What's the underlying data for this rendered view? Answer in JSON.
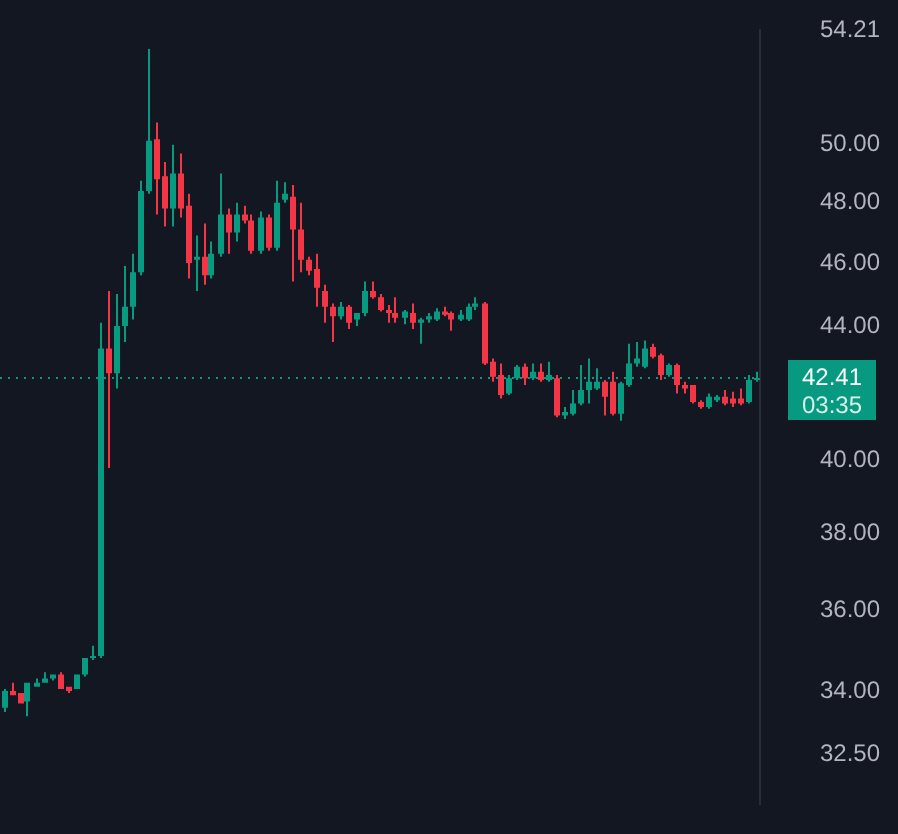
{
  "chart_data": {
    "type": "candlestick",
    "categories": [
      null,
      null,
      null,
      null,
      null,
      null,
      null,
      null,
      null,
      null,
      null,
      null,
      null,
      null,
      null,
      null,
      null,
      null,
      null,
      null,
      null,
      null,
      null,
      null,
      null,
      null,
      null,
      null,
      null,
      null,
      null,
      null,
      null,
      null,
      null,
      null,
      null,
      null,
      null,
      null,
      null,
      null,
      null,
      null,
      null,
      null,
      null,
      null,
      null,
      null,
      null,
      null,
      null,
      null,
      null,
      null,
      null,
      null,
      null,
      null,
      null,
      null,
      null,
      null,
      null,
      null,
      null,
      null,
      null,
      null,
      null,
      null,
      null,
      null,
      null,
      null,
      null,
      null,
      null,
      null,
      null,
      null,
      null,
      null,
      null,
      null,
      null,
      null,
      null,
      null,
      null,
      null,
      null,
      null,
      null
    ],
    "ohlc": [
      [
        33.6,
        34.05,
        33.5,
        34.0
      ],
      [
        34.0,
        34.2,
        33.9,
        33.9
      ],
      [
        33.95,
        33.95,
        33.7,
        33.7
      ],
      [
        33.75,
        34.2,
        33.4,
        34.2
      ],
      [
        34.1,
        34.3,
        34.1,
        34.2
      ],
      [
        34.2,
        34.45,
        34.2,
        34.3
      ],
      [
        34.3,
        34.4,
        34.25,
        34.4
      ],
      [
        34.4,
        34.45,
        34.05,
        34.05
      ],
      [
        34.1,
        34.1,
        33.95,
        34.0
      ],
      [
        34.05,
        34.4,
        34.05,
        34.4
      ],
      [
        34.4,
        34.8,
        34.35,
        34.8
      ],
      [
        34.8,
        35.1,
        34.75,
        34.85
      ],
      [
        34.85,
        44.1,
        34.8,
        43.3
      ],
      [
        43.3,
        45.1,
        39.8,
        42.55
      ],
      [
        42.55,
        45.0,
        42.1,
        44.0
      ],
      [
        44.0,
        45.9,
        43.5,
        44.6
      ],
      [
        44.6,
        46.3,
        44.2,
        45.7
      ],
      [
        45.7,
        48.75,
        45.6,
        48.4
      ],
      [
        48.4,
        53.5,
        48.3,
        50.15
      ],
      [
        50.2,
        50.8,
        47.6,
        48.8
      ],
      [
        48.9,
        49.4,
        47.2,
        47.8
      ],
      [
        47.8,
        50.0,
        47.2,
        49.0
      ],
      [
        49.0,
        49.7,
        47.5,
        47.8
      ],
      [
        47.9,
        48.3,
        45.5,
        46.0
      ],
      [
        46.1,
        46.9,
        45.1,
        46.2
      ],
      [
        46.2,
        47.3,
        45.3,
        45.6
      ],
      [
        45.6,
        46.7,
        45.5,
        46.3
      ],
      [
        46.3,
        49.0,
        46.2,
        47.6
      ],
      [
        47.6,
        47.8,
        46.3,
        47.0
      ],
      [
        47.0,
        48.0,
        46.7,
        47.6
      ],
      [
        47.6,
        47.9,
        47.3,
        47.4
      ],
      [
        47.4,
        47.6,
        46.3,
        46.4
      ],
      [
        46.4,
        47.7,
        46.3,
        47.5
      ],
      [
        47.5,
        47.6,
        46.4,
        46.5
      ],
      [
        46.5,
        48.75,
        46.4,
        48.0
      ],
      [
        48.1,
        48.7,
        48.0,
        48.3
      ],
      [
        48.2,
        48.6,
        45.4,
        47.1
      ],
      [
        47.1,
        48.0,
        45.7,
        46.1
      ],
      [
        46.1,
        46.2,
        45.6,
        45.75
      ],
      [
        45.8,
        46.3,
        44.6,
        45.2
      ],
      [
        45.1,
        45.3,
        44.1,
        44.6
      ],
      [
        44.6,
        44.7,
        43.5,
        44.3
      ],
      [
        44.3,
        44.75,
        44.2,
        44.6
      ],
      [
        44.6,
        44.65,
        43.9,
        44.1
      ],
      [
        44.2,
        44.4,
        44.0,
        44.4
      ],
      [
        44.4,
        45.4,
        44.3,
        45.1
      ],
      [
        45.1,
        45.4,
        44.85,
        44.9
      ],
      [
        44.9,
        45.0,
        44.45,
        44.5
      ],
      [
        44.5,
        44.65,
        44.1,
        44.4
      ],
      [
        44.4,
        44.9,
        44.1,
        44.25
      ],
      [
        44.25,
        44.5,
        44.05,
        44.45
      ],
      [
        44.4,
        44.7,
        43.9,
        44.1
      ],
      [
        44.1,
        44.25,
        43.45,
        44.2
      ],
      [
        44.2,
        44.4,
        44.1,
        44.3
      ],
      [
        44.2,
        44.55,
        44.15,
        44.45
      ],
      [
        44.45,
        44.6,
        44.3,
        44.35
      ],
      [
        44.4,
        44.45,
        43.85,
        44.2
      ],
      [
        44.2,
        44.5,
        44.15,
        44.35
      ],
      [
        44.2,
        44.7,
        44.15,
        44.6
      ],
      [
        44.6,
        44.9,
        44.5,
        44.7
      ],
      [
        44.7,
        44.75,
        42.8,
        42.85
      ],
      [
        42.9,
        43.0,
        42.3,
        42.45
      ],
      [
        42.5,
        42.85,
        41.8,
        41.9
      ],
      [
        41.95,
        42.5,
        41.9,
        42.4
      ],
      [
        42.4,
        42.8,
        42.35,
        42.75
      ],
      [
        42.75,
        42.85,
        42.2,
        42.4
      ],
      [
        42.4,
        42.85,
        42.35,
        42.6
      ],
      [
        42.6,
        42.85,
        42.3,
        42.35
      ],
      [
        42.35,
        42.9,
        42.3,
        42.5
      ],
      [
        42.4,
        42.5,
        41.25,
        41.3
      ],
      [
        41.3,
        41.55,
        41.2,
        41.4
      ],
      [
        41.35,
        42.05,
        41.3,
        41.65
      ],
      [
        41.65,
        42.8,
        41.6,
        42.05
      ],
      [
        42.05,
        43.0,
        41.65,
        42.3
      ],
      [
        42.1,
        42.7,
        42.05,
        42.3
      ],
      [
        42.3,
        42.35,
        41.3,
        41.85
      ],
      [
        42.3,
        42.6,
        41.3,
        41.35
      ],
      [
        41.35,
        42.3,
        41.15,
        42.25
      ],
      [
        42.2,
        43.45,
        42.15,
        42.85
      ],
      [
        42.85,
        43.5,
        42.75,
        43.0
      ],
      [
        42.75,
        43.55,
        42.7,
        43.3
      ],
      [
        43.35,
        43.45,
        43.0,
        43.05
      ],
      [
        43.1,
        43.15,
        42.35,
        42.5
      ],
      [
        42.5,
        42.85,
        42.45,
        42.8
      ],
      [
        42.8,
        42.85,
        41.95,
        42.2
      ],
      [
        42.2,
        42.3,
        41.95,
        42.1
      ],
      [
        42.2,
        42.2,
        41.65,
        41.7
      ],
      [
        41.7,
        41.75,
        41.5,
        41.55
      ],
      [
        41.55,
        41.95,
        41.5,
        41.85
      ],
      [
        41.75,
        41.9,
        41.7,
        41.85
      ],
      [
        41.85,
        42.05,
        41.6,
        41.65
      ],
      [
        41.8,
        42.0,
        41.55,
        41.65
      ],
      [
        41.8,
        42.1,
        41.6,
        41.65
      ],
      [
        41.7,
        42.5,
        41.65,
        42.35
      ],
      [
        42.35,
        42.6,
        42.3,
        42.41
      ]
    ],
    "colors": [
      "#089981",
      "#f23645",
      "#f23645",
      "#089981",
      "#089981",
      "#089981",
      "#089981",
      "#f23645",
      "#f23645",
      "#089981",
      "#089981",
      "#089981",
      "#089981",
      "#f23645",
      "#089981",
      "#089981",
      "#089981",
      "#089981",
      "#089981",
      "#f23645",
      "#f23645",
      "#089981",
      "#f23645",
      "#f23645",
      "#089981",
      "#f23645",
      "#089981",
      "#089981",
      "#f23645",
      "#089981",
      "#f23645",
      "#f23645",
      "#089981",
      "#f23645",
      "#089981",
      "#089981",
      "#f23645",
      "#f23645",
      "#f23645",
      "#f23645",
      "#f23645",
      "#f23645",
      "#089981",
      "#f23645",
      "#089981",
      "#089981",
      "#f23645",
      "#f23645",
      "#f23645",
      "#f23645",
      "#089981",
      "#f23645",
      "#089981",
      "#089981",
      "#089981",
      "#f23645",
      "#f23645",
      "#089981",
      "#089981",
      "#089981",
      "#f23645",
      "#f23645",
      "#f23645",
      "#089981",
      "#089981",
      "#f23645",
      "#089981",
      "#f23645",
      "#089981",
      "#f23645",
      "#089981",
      "#089981",
      "#089981",
      "#089981",
      "#089981",
      "#f23645",
      "#f23645",
      "#089981",
      "#089981",
      "#089981",
      "#089981",
      "#f23645",
      "#f23645",
      "#089981",
      "#f23645",
      "#f23645",
      "#f23645",
      "#f23645",
      "#089981",
      "#089981",
      "#f23645",
      "#f23645",
      "#f23645",
      "#089981",
      "#089981"
    ],
    "log": true,
    "ylim": [
      31.4,
      54.21
    ],
    "yticks": [
      {
        "value": 32.5,
        "label": "32.50"
      },
      {
        "value": 34,
        "label": "34.00"
      },
      {
        "value": 36,
        "label": "36.00"
      },
      {
        "value": 38,
        "label": "38.00"
      },
      {
        "value": 40,
        "label": "40.00"
      },
      {
        "value": 44,
        "label": "44.00"
      },
      {
        "value": 46,
        "label": "46.00"
      },
      {
        "value": 48,
        "label": "48.00"
      },
      {
        "value": 50,
        "label": "50.00"
      },
      {
        "value": 54.21,
        "label": "54.21"
      }
    ],
    "tick_labels": "y",
    "grid": false,
    "legend": false,
    "ref_lines": [
      {
        "axis": "y",
        "value": 42.41,
        "label": "42.41",
        "color": "#089981",
        "line_style": "dotted"
      }
    ],
    "annotations": [
      "03:35"
    ]
  }
}
